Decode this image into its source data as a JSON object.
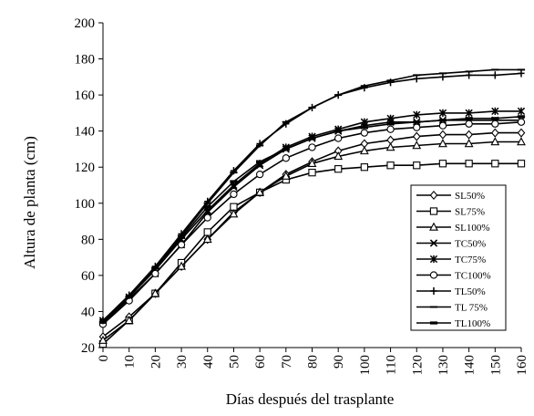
{
  "chart_data": {
    "type": "line",
    "xlabel": "Días después del trasplante",
    "ylabel": "Altura de planta (cm)",
    "xlim": [
      0,
      160
    ],
    "ylim": [
      20,
      200
    ],
    "x": [
      0,
      10,
      20,
      30,
      40,
      50,
      60,
      70,
      80,
      90,
      100,
      110,
      120,
      130,
      140,
      150,
      160
    ],
    "x_tick_labels": [
      "0",
      "10",
      "20",
      "30",
      "40",
      "50",
      "60",
      "70",
      "80",
      "90",
      "100",
      "110",
      "120",
      "130",
      "140",
      "150",
      "160"
    ],
    "y_ticks": [
      20,
      40,
      60,
      80,
      100,
      120,
      140,
      160,
      180,
      200
    ],
    "y_tick_labels": [
      "20",
      "40",
      "60",
      "80",
      "100",
      "120",
      "140",
      "160",
      "180",
      "200"
    ],
    "grid": false,
    "legend_position": "right",
    "series": [
      {
        "name": "SL50%",
        "marker": "diamond",
        "values": [
          26,
          37,
          50,
          65,
          80,
          95,
          106,
          116,
          123,
          129,
          133,
          135,
          137,
          138,
          138,
          139,
          139
        ]
      },
      {
        "name": "SL75%",
        "marker": "square",
        "values": [
          22,
          35,
          50,
          67,
          84,
          98,
          106,
          113,
          117,
          119,
          120,
          121,
          121,
          122,
          122,
          122,
          122
        ]
      },
      {
        "name": "SL100%",
        "marker": "triangle",
        "values": [
          24,
          35,
          50,
          65,
          80,
          94,
          106,
          115,
          122,
          126,
          129,
          131,
          132,
          133,
          133,
          134,
          134
        ]
      },
      {
        "name": "TC50%",
        "marker": "x",
        "values": [
          34,
          47,
          61,
          77,
          95,
          109,
          121,
          130,
          136,
          140,
          143,
          145,
          145,
          146,
          146,
          146,
          146
        ]
      },
      {
        "name": "TC75%",
        "marker": "star",
        "values": [
          35,
          48,
          63,
          80,
          96,
          110,
          122,
          131,
          137,
          141,
          145,
          147,
          149,
          150,
          150,
          151,
          151
        ]
      },
      {
        "name": "TC100%",
        "marker": "circle",
        "values": [
          33,
          46,
          61,
          77,
          92,
          105,
          116,
          125,
          131,
          136,
          139,
          141,
          142,
          143,
          144,
          144,
          145
        ]
      },
      {
        "name": "TL50%",
        "marker": "plus",
        "values": [
          35,
          49,
          65,
          83,
          101,
          118,
          133,
          144,
          153,
          160,
          164,
          167,
          169,
          170,
          171,
          171,
          172
        ]
      },
      {
        "name": "TL 75%",
        "marker": "dash",
        "values": [
          34,
          48,
          64,
          82,
          100,
          117,
          132,
          145,
          153,
          160,
          165,
          168,
          171,
          172,
          173,
          174,
          174
        ]
      },
      {
        "name": "TL100%",
        "marker": "bar",
        "values": [
          34,
          48,
          64,
          81,
          98,
          112,
          123,
          130,
          136,
          140,
          142,
          144,
          145,
          146,
          147,
          147,
          148
        ]
      }
    ]
  }
}
